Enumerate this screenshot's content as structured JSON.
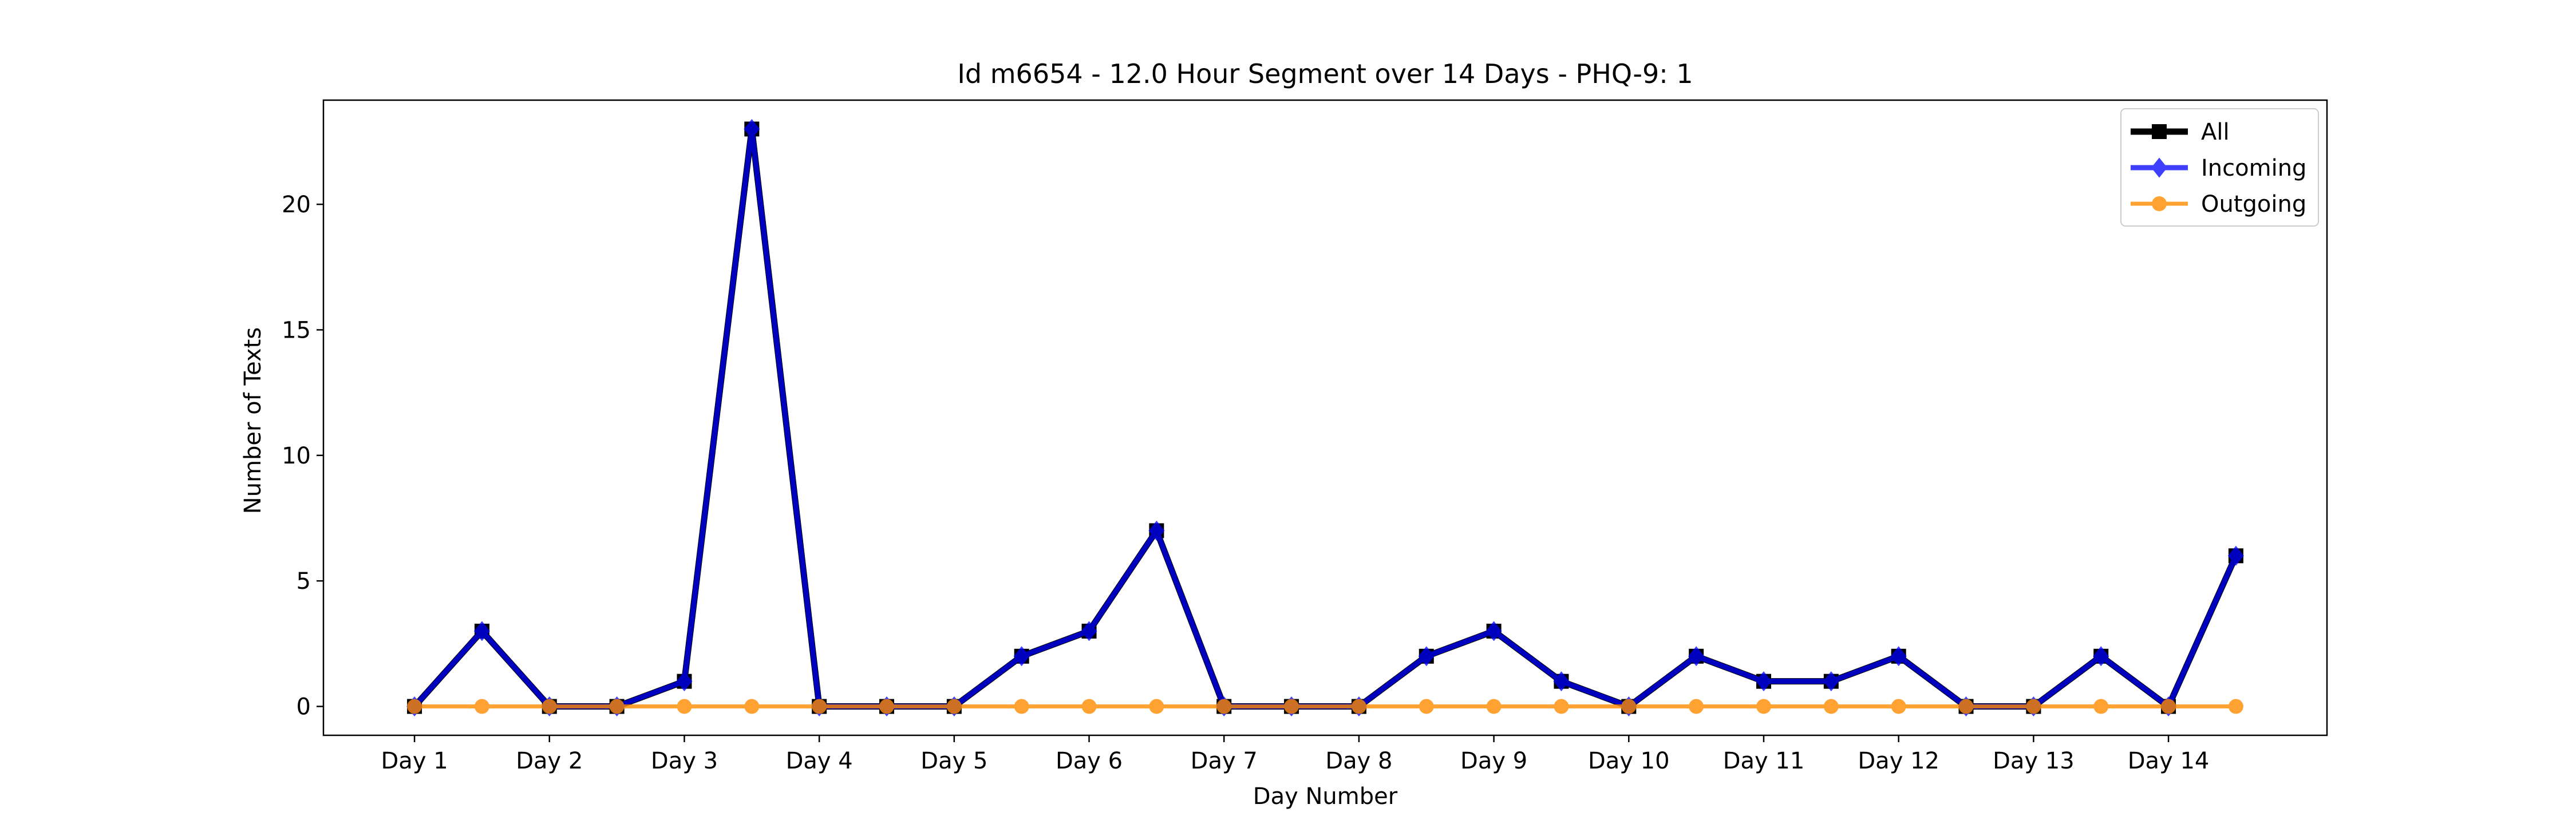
{
  "chart_data": {
    "type": "line",
    "title": "Id m6654 - 12.0 Hour Segment over 14 Days - PHQ-9: 1",
    "xlabel": "Day Number",
    "ylabel": "Number of Texts",
    "categories": [
      "Day 1",
      "Day 2",
      "Day 3",
      "Day 4",
      "Day 5",
      "Day 6",
      "Day 7",
      "Day 8",
      "Day 9",
      "Day 10",
      "Day 11",
      "Day 12",
      "Day 13",
      "Day 14"
    ],
    "x": [
      0,
      1,
      2,
      3,
      4,
      5,
      6,
      7,
      8,
      9,
      10,
      11,
      12,
      13,
      14,
      15,
      16,
      17,
      18,
      19,
      20,
      21,
      22,
      23,
      24,
      25,
      26,
      27
    ],
    "ylim": [
      -1.15,
      24.15
    ],
    "xlim": [
      -1.35,
      28.35
    ],
    "yticks": [
      0,
      5,
      10,
      15,
      20
    ],
    "legend_position": "top-right",
    "grid": false,
    "series": [
      {
        "name": "All",
        "color": "#000000",
        "marker": "square",
        "values": [
          0,
          3,
          0,
          0,
          1,
          23,
          0,
          0,
          0,
          2,
          3,
          7,
          0,
          0,
          0,
          2,
          3,
          1,
          0,
          2,
          1,
          1,
          2,
          0,
          0,
          2,
          0,
          6
        ]
      },
      {
        "name": "Incoming",
        "color": "#0000ff",
        "marker": "diamond",
        "values": [
          0,
          3,
          0,
          0,
          1,
          23,
          0,
          0,
          0,
          2,
          3,
          7,
          0,
          0,
          0,
          2,
          3,
          1,
          0,
          2,
          1,
          1,
          2,
          0,
          0,
          2,
          0,
          6
        ]
      },
      {
        "name": "Outgoing",
        "color": "#ff8c00",
        "marker": "circle",
        "values": [
          0,
          0,
          0,
          0,
          0,
          0,
          0,
          0,
          0,
          0,
          0,
          0,
          0,
          0,
          0,
          0,
          0,
          0,
          0,
          0,
          0,
          0,
          0,
          0,
          0,
          0,
          0,
          0
        ]
      }
    ]
  }
}
